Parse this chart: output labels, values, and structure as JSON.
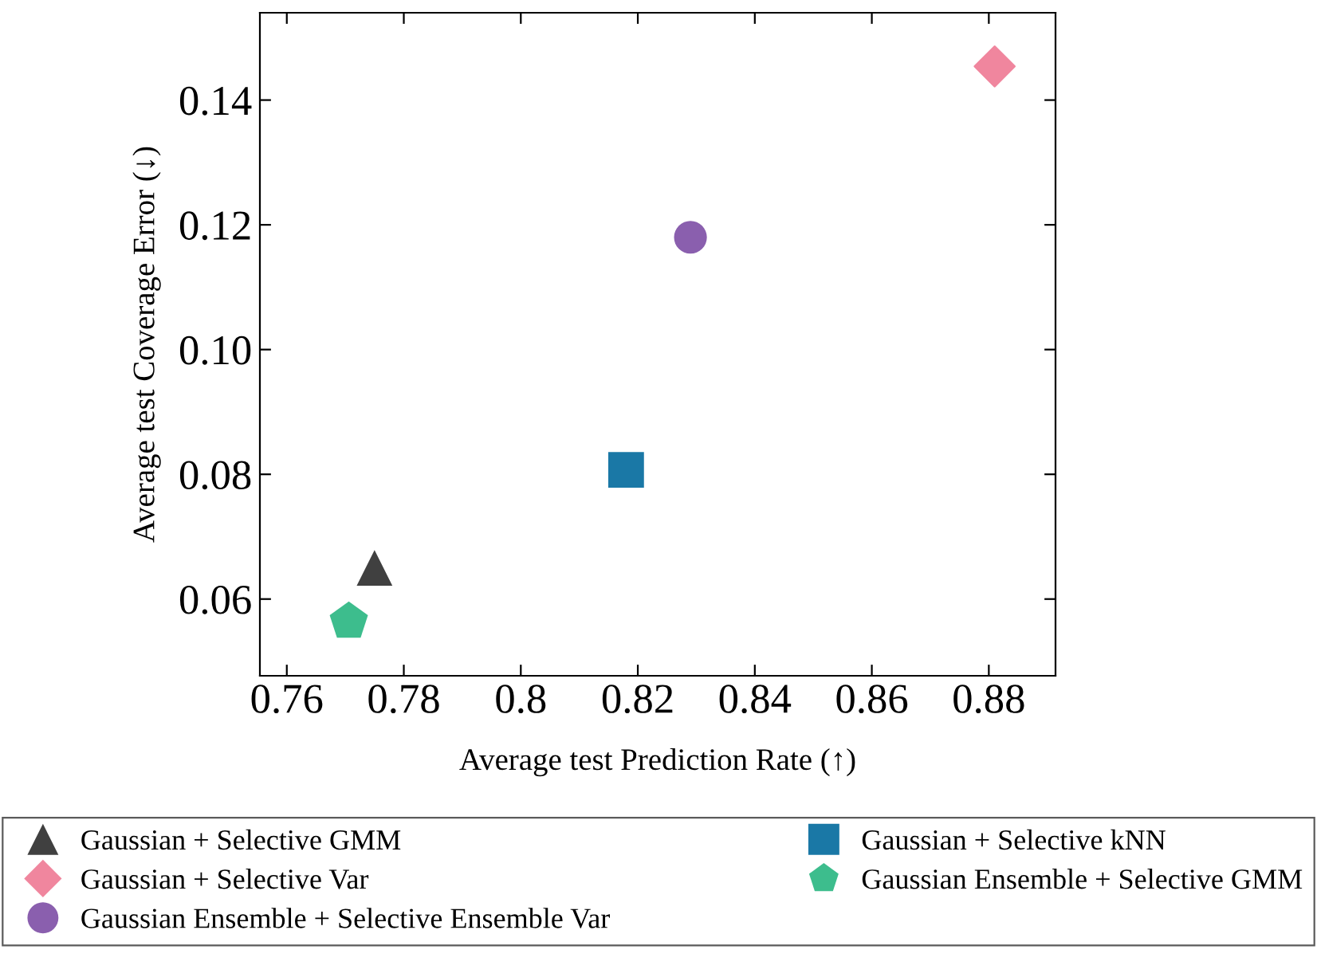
{
  "chart_data": {
    "type": "scatter",
    "xlabel": "Average test Prediction Rate (↑)",
    "ylabel": "Average test Coverage Error (↓)",
    "xlim": [
      0.7554,
      0.8914
    ],
    "ylim": [
      0.0477,
      0.154
    ],
    "xticks": [
      0.76,
      0.78,
      0.8,
      0.82,
      0.84,
      0.86,
      0.88
    ],
    "yticks": [
      0.06,
      0.08,
      {
        "value": 0.1,
        "label": "0.10"
      },
      0.12,
      0.14
    ],
    "grid": false,
    "legend": "bottom",
    "series": [
      {
        "name": "Gaussian + Selective GMM",
        "color": "#404040",
        "marker": "triangle",
        "x": [
          0.775
        ],
        "values": [
          0.065
        ]
      },
      {
        "name": "Gaussian + Selective kNN",
        "color": "#1a78a6",
        "marker": "square",
        "x": [
          0.818
        ],
        "values": [
          0.0807
        ]
      },
      {
        "name": "Gaussian + Selective Var",
        "color": "#f0869e",
        "marker": "diamond",
        "x": [
          0.881
        ],
        "values": [
          0.1454
        ]
      },
      {
        "name": "Gaussian Ensemble + Selective GMM",
        "color": "#3dbd8d",
        "x": [
          0.7706
        ],
        "values": [
          0.0564
        ]
      },
      {
        "name": "Gaussian Ensemble + Selective Ensemble Var",
        "color": "#8a5fae",
        "marker": "circle",
        "x": [
          0.829
        ],
        "values": [
          0.118
        ]
      }
    ]
  }
}
